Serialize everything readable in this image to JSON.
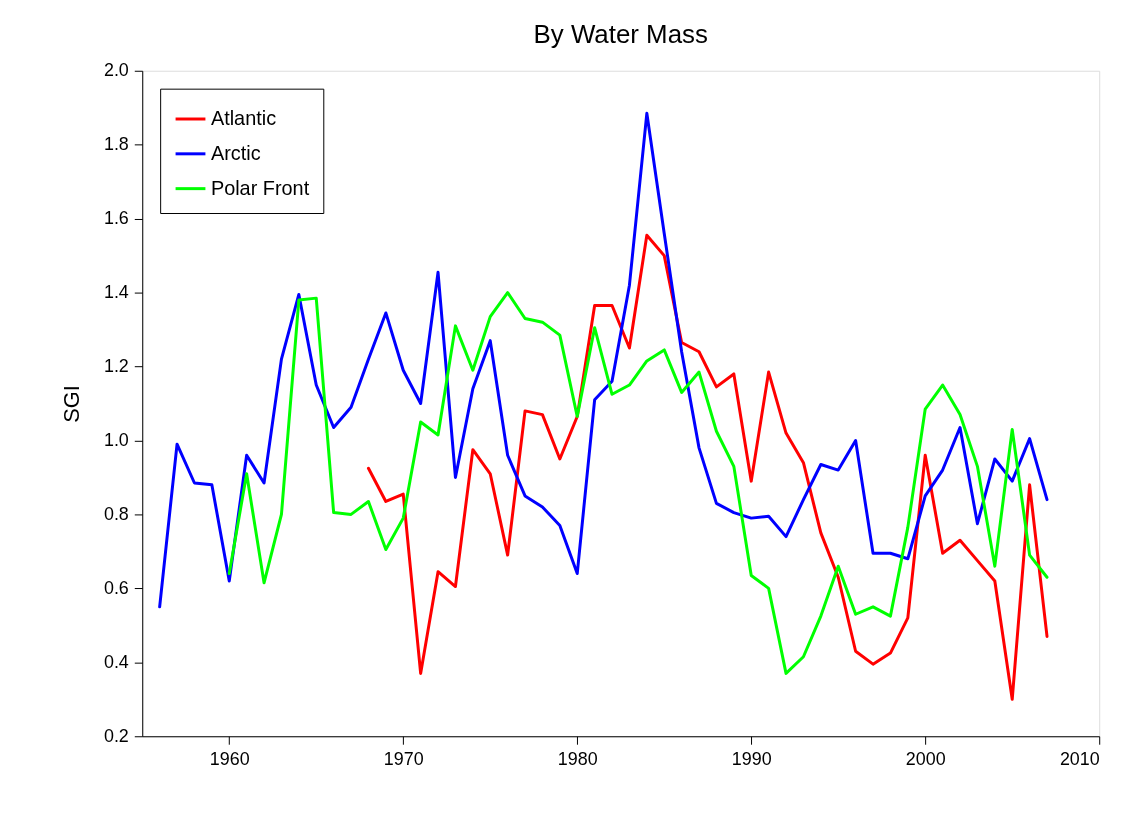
{
  "chart_data": {
    "type": "line",
    "title": "By Water Mass",
    "ylabel": "SGI",
    "x": [
      1956,
      1957,
      1958,
      1959,
      1960,
      1961,
      1962,
      1963,
      1964,
      1965,
      1966,
      1967,
      1968,
      1969,
      1970,
      1971,
      1972,
      1973,
      1974,
      1975,
      1976,
      1977,
      1978,
      1979,
      1980,
      1981,
      1982,
      1983,
      1984,
      1985,
      1986,
      1987,
      1988,
      1989,
      1990,
      1991,
      1992,
      1993,
      1994,
      1995,
      1996,
      1997,
      1998,
      1999,
      2000,
      2001,
      2002,
      2003,
      2004,
      2005,
      2006,
      2007
    ],
    "series": [
      {
        "name": "Atlantic",
        "color": "#ff0000",
        "values": [
          null,
          null,
          null,
          null,
          null,
          null,
          null,
          null,
          null,
          null,
          null,
          null,
          0.925,
          0.835,
          0.855,
          0.37,
          0.645,
          0.605,
          0.975,
          0.91,
          0.69,
          1.08,
          1.07,
          0.95,
          1.065,
          1.365,
          1.365,
          1.25,
          1.555,
          1.5,
          1.265,
          1.24,
          1.145,
          1.18,
          0.89,
          1.185,
          1.02,
          0.94,
          0.75,
          0.63,
          0.43,
          0.395,
          0.425,
          0.52,
          0.96,
          0.695,
          0.73,
          0.675,
          0.62,
          0.3,
          0.88,
          0.47
        ]
      },
      {
        "name": "Arctic",
        "color": "#0000ff",
        "values": [
          0.55,
          0.99,
          0.885,
          0.88,
          0.62,
          0.96,
          0.885,
          1.22,
          1.395,
          1.15,
          1.035,
          1.09,
          1.22,
          1.345,
          1.19,
          1.1,
          1.455,
          0.9,
          1.14,
          1.27,
          0.96,
          0.85,
          0.82,
          0.77,
          0.64,
          1.11,
          1.16,
          1.42,
          1.885,
          1.56,
          1.24,
          0.98,
          0.83,
          0.805,
          0.79,
          0.795,
          0.74,
          0.84,
          0.935,
          0.92,
          1.0,
          0.695,
          0.695,
          0.68,
          0.85,
          0.92,
          1.035,
          0.775,
          0.95,
          0.89,
          1.005,
          0.84
        ]
      },
      {
        "name": "Polar Front",
        "color": "#00ff00",
        "values": [
          null,
          null,
          null,
          null,
          0.64,
          0.91,
          0.615,
          0.8,
          1.38,
          1.385,
          0.805,
          0.8,
          0.835,
          0.705,
          0.79,
          1.05,
          1.015,
          1.31,
          1.19,
          1.335,
          1.4,
          1.33,
          1.32,
          1.285,
          1.065,
          1.305,
          1.125,
          1.15,
          1.215,
          1.245,
          1.13,
          1.185,
          1.025,
          0.93,
          0.635,
          0.6,
          0.37,
          0.415,
          0.525,
          0.66,
          0.53,
          0.55,
          0.525,
          0.765,
          1.085,
          1.15,
          1.07,
          0.93,
          0.66,
          1.03,
          0.69,
          0.63
        ]
      }
    ],
    "xlim": [
      1955,
      2010
    ],
    "xticks": [
      1960,
      1970,
      1980,
      1990,
      2000,
      2010
    ],
    "ylim": [
      0.2,
      2.0
    ],
    "yticks": [
      0.2,
      0.4,
      0.6,
      0.8,
      {
        "value": 1,
        "label": "1.0"
      },
      1.2,
      1.4,
      1.6,
      1.8,
      {
        "value": 2,
        "label": "2.0"
      }
    ],
    "grid": false,
    "legend": "top left",
    "marker": "none",
    "line_style": "solid"
  }
}
